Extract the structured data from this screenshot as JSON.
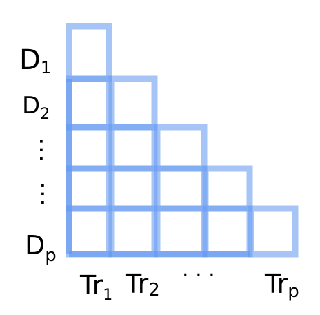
{
  "row_labels": [
    {
      "main": "D",
      "sub": "1"
    },
    {
      "main": "D",
      "sub": "2"
    },
    {
      "main": "⋮",
      "sub": ""
    },
    {
      "main": "D",
      "sub": "p"
    }
  ],
  "column_labels": [
    {
      "main": "Tr",
      "sub": "1"
    },
    {
      "main": "Tr",
      "sub": "2"
    },
    {
      "main": "· · ·",
      "sub": ""
    },
    {
      "main": "Tr",
      "sub": "p"
    }
  ],
  "colors": {
    "cell_stroke": "#6f9ff0",
    "ink": "#000000"
  }
}
